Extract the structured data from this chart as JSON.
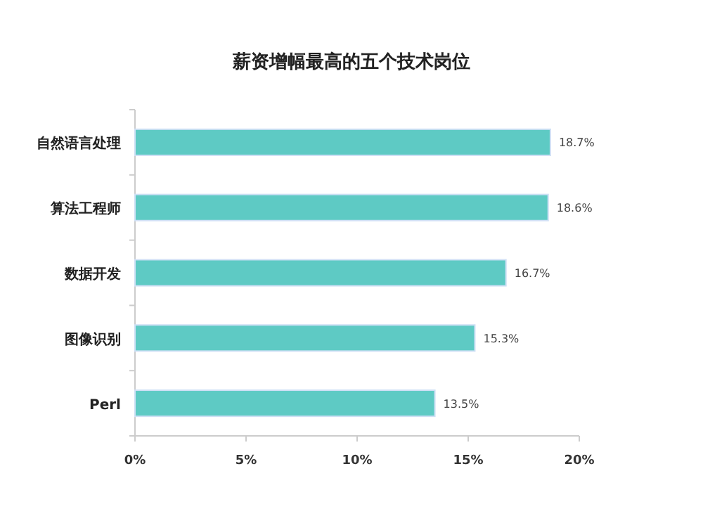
{
  "chart_data": {
    "type": "bar",
    "orientation": "horizontal",
    "title": "薪资增幅最高的五个技术岗位",
    "categories": [
      "自然语言处理",
      "算法工程师",
      "数据开发",
      "图像识别",
      "Perl"
    ],
    "values": [
      18.7,
      18.6,
      16.7,
      15.3,
      13.5
    ],
    "value_labels": [
      "18.7%",
      "18.6%",
      "16.7%",
      "15.3%",
      "13.5%"
    ],
    "color": "#5ecac4",
    "xlim": [
      0,
      20
    ],
    "xticks": [
      {
        "value": 0,
        "label": "0%"
      },
      {
        "value": 5,
        "label": "5%"
      },
      {
        "value": 10,
        "label": "10%"
      },
      {
        "value": 15,
        "label": "15%"
      },
      {
        "value": 20,
        "label": "20%"
      }
    ],
    "grid": false
  }
}
